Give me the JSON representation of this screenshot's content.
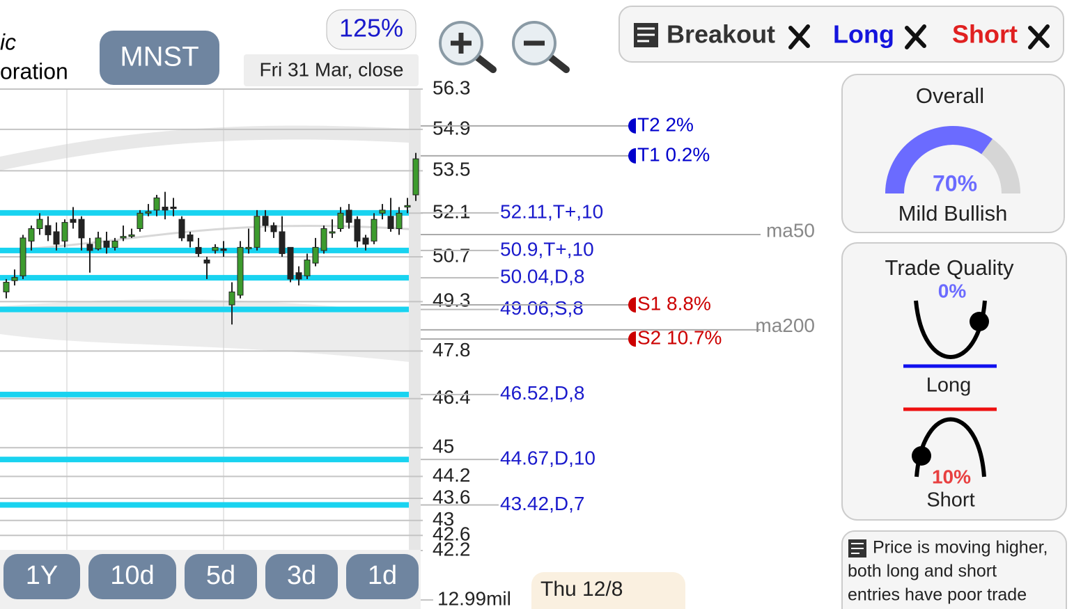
{
  "header": {
    "company_line_1": "ic",
    "company_line_2": "oration",
    "ticker": "MNST",
    "zoom": "125%",
    "date_label": "Fri 31 Mar, close"
  },
  "toolbar": {
    "breakout": "Breakout",
    "long": "Long",
    "short": "Short"
  },
  "chart_data": {
    "type": "candlestick",
    "log_scale": true,
    "grid": true,
    "ylim": [
      42.2,
      56.3
    ],
    "yticks": [
      56.3,
      54.9,
      53.5,
      52.1,
      50.7,
      49.3,
      47.8,
      46.4,
      45,
      44.2,
      43.6,
      43,
      42.6,
      42.2
    ],
    "up_color": "#3d9b2e",
    "down_color": "#222222",
    "level_color": "#19d3f0",
    "open": [
      49.6,
      49.95,
      50.1,
      51.2,
      51.6,
      51.7,
      51.5,
      51.2,
      51.9,
      51.9,
      51.1,
      50.95,
      51.2,
      51.0,
      51.3,
      51.35,
      51.6,
      52.1,
      52.2,
      52.3,
      52.3,
      51.9,
      51.4,
      51.0,
      50.6,
      50.9,
      50.95,
      49.2,
      49.5,
      51.0,
      51.0,
      52.0,
      51.7,
      51.5,
      51.0,
      50.2,
      50.1,
      50.5,
      50.9,
      51.5,
      51.6,
      52.2,
      51.9,
      51.3,
      51.2,
      52.1,
      52.0,
      51.6,
      52.3,
      52.7
    ],
    "high": [
      50.0,
      50.3,
      51.4,
      51.7,
      52.1,
      52.0,
      51.8,
      51.9,
      52.3,
      52.0,
      51.3,
      51.5,
      51.5,
      51.3,
      51.7,
      51.6,
      52.2,
      52.4,
      52.7,
      52.8,
      52.6,
      52.0,
      51.5,
      51.3,
      50.7,
      51.1,
      51.2,
      49.9,
      51.2,
      51.6,
      52.2,
      52.2,
      51.8,
      52.0,
      51.0,
      50.4,
      50.8,
      51.3,
      51.7,
      51.9,
      52.3,
      52.4,
      52.0,
      51.4,
      52.1,
      52.4,
      52.6,
      52.3,
      52.6,
      54.1
    ],
    "low": [
      49.4,
      49.8,
      50.0,
      50.9,
      51.4,
      51.2,
      50.9,
      51.0,
      51.6,
      50.9,
      50.2,
      50.9,
      50.8,
      50.9,
      51.2,
      51.3,
      51.5,
      52.0,
      52.0,
      51.9,
      52.0,
      51.2,
      51.0,
      50.7,
      50.0,
      50.8,
      50.7,
      48.6,
      49.4,
      50.8,
      50.9,
      51.5,
      51.3,
      50.7,
      49.9,
      49.8,
      50.0,
      50.4,
      50.8,
      51.3,
      51.5,
      51.6,
      51.0,
      50.9,
      51.1,
      51.9,
      51.5,
      51.4,
      52.1,
      52.5
    ],
    "close": [
      49.9,
      50.05,
      51.3,
      51.6,
      51.9,
      51.4,
      51.1,
      51.8,
      51.8,
      51.3,
      50.9,
      51.3,
      51.0,
      51.2,
      51.35,
      51.4,
      52.1,
      52.15,
      52.6,
      52.2,
      52.25,
      51.3,
      51.2,
      50.8,
      50.5,
      51.0,
      50.9,
      49.6,
      51.0,
      51.0,
      52.0,
      51.7,
      51.5,
      50.8,
      50.0,
      50.0,
      50.6,
      51.0,
      51.6,
      51.5,
      52.1,
      51.8,
      51.2,
      51.1,
      51.9,
      52.2,
      51.6,
      52.1,
      52.35,
      53.9
    ],
    "levels": [
      {
        "value": 52.11,
        "label": "52.11,T+,10"
      },
      {
        "value": 50.9,
        "label": "50.9,T+,10"
      },
      {
        "value": 50.04,
        "label": "50.04,D,8"
      },
      {
        "value": 49.06,
        "label": "49.06,S,8"
      },
      {
        "value": 46.52,
        "label": "46.52,D,8"
      },
      {
        "value": 44.67,
        "label": "44.67,D,10"
      },
      {
        "value": 43.42,
        "label": "43.42,D,7"
      }
    ],
    "targets": [
      {
        "value": 55.02,
        "label": "T2 2%",
        "color": "#0000cc"
      },
      {
        "value": 54.0,
        "label": "T1 0.2%",
        "color": "#0000cc"
      },
      {
        "value": 49.2,
        "label": "S1 8.8%",
        "color": "#cc0000"
      },
      {
        "value": 48.16,
        "label": "S2 10.7%",
        "color": "#cc0000"
      }
    ],
    "moving_averages": [
      {
        "value": 51.41,
        "label": "ma50"
      },
      {
        "value": 48.44,
        "label": "ma200"
      }
    ],
    "volume_tick": "12.99mil"
  },
  "periods": [
    "1Y",
    "10d",
    "5d",
    "3d",
    "1d"
  ],
  "cursor_date": "Thu 12/8",
  "overall": {
    "title": "Overall",
    "value": 70,
    "value_label": "70%",
    "rating": "Mild Bullish",
    "color": "#6b6bff"
  },
  "trade_quality": {
    "title": "Trade Quality",
    "long_label": "0%",
    "long": "Long",
    "short_label": "10%",
    "short": "Short"
  },
  "note": [
    "Price is moving higher,",
    "both long and short",
    "entries have poor trade"
  ]
}
